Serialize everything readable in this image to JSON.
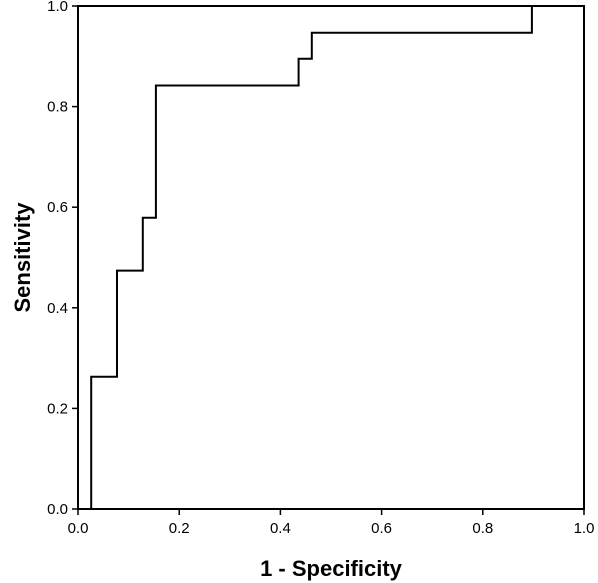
{
  "chart_data": {
    "type": "line",
    "line_shape": "step",
    "title": "",
    "xlabel": "1 - Specificity",
    "ylabel": "Sensitivity",
    "xlim": [
      0.0,
      1.0
    ],
    "ylim": [
      0.0,
      1.0
    ],
    "xticks": [
      "0.0",
      "0.2",
      "0.4",
      "0.6",
      "0.8",
      "1.0"
    ],
    "yticks": [
      "0.0",
      "0.2",
      "0.4",
      "0.6",
      "0.8",
      "1.0"
    ],
    "grid": false,
    "legend": "none",
    "line_color": "#000000",
    "series": [
      {
        "points": [
          [
            0.026,
            0.0
          ],
          [
            0.026,
            0.263
          ],
          [
            0.077,
            0.263
          ],
          [
            0.077,
            0.474
          ],
          [
            0.128,
            0.474
          ],
          [
            0.128,
            0.579
          ],
          [
            0.154,
            0.579
          ],
          [
            0.154,
            0.842
          ],
          [
            0.436,
            0.842
          ],
          [
            0.436,
            0.895
          ],
          [
            0.462,
            0.895
          ],
          [
            0.462,
            0.947
          ],
          [
            0.897,
            0.947
          ],
          [
            0.897,
            1.0
          ],
          [
            1.0,
            1.0
          ]
        ]
      }
    ]
  }
}
